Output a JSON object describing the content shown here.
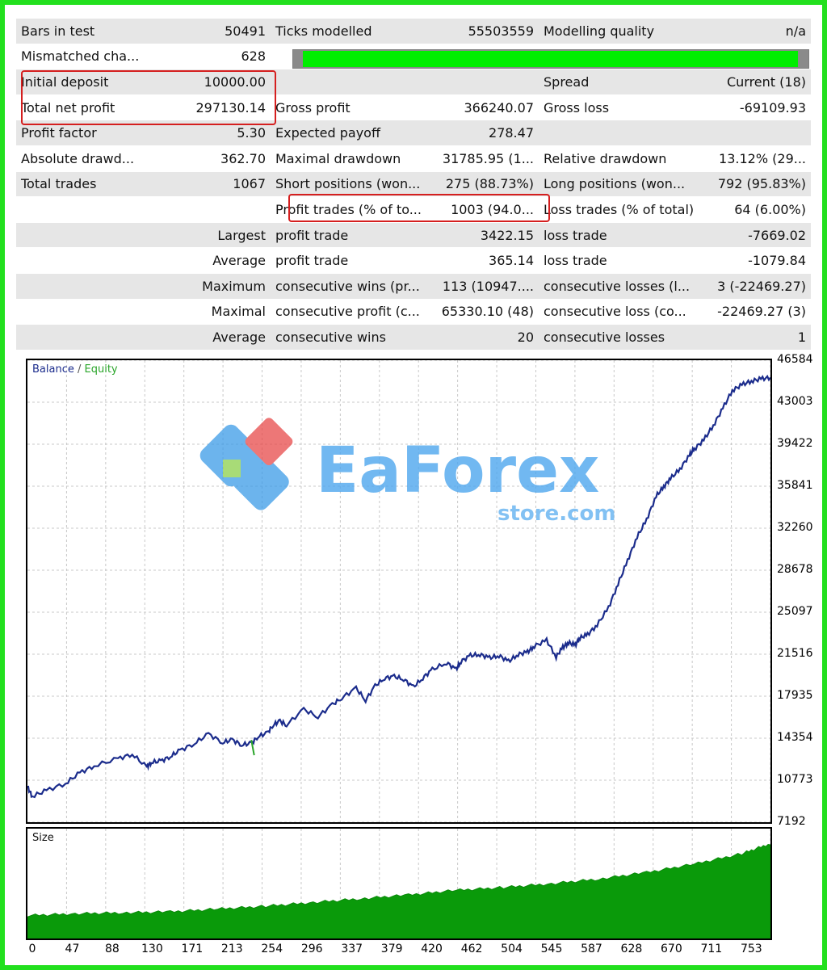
{
  "report": {
    "rows": [
      [
        "Bars in test",
        "50491",
        "Ticks modelled",
        "55503559",
        "Modelling quality",
        "n/a"
      ],
      [
        "Mismatched cha...",
        "628",
        "",
        "",
        "",
        ""
      ],
      [
        "Initial deposit",
        "10000.00",
        "",
        "",
        "Spread",
        "Current (18)"
      ],
      [
        "Total net profit",
        "297130.14",
        "Gross profit",
        "366240.07",
        "Gross loss",
        "-69109.93"
      ],
      [
        "Profit factor",
        "5.30",
        "Expected payoff",
        "278.47",
        "",
        ""
      ],
      [
        "Absolute drawd...",
        "362.70",
        "Maximal drawdown",
        "31785.95 (1...",
        "Relative drawdown",
        "13.12% (29..."
      ],
      [
        "Total trades",
        "1067",
        "Short positions (won...",
        "275 (88.73%)",
        "Long positions (won...",
        "792 (95.83%)"
      ],
      [
        "",
        "",
        "Profit trades (% of to...",
        "1003 (94.0...",
        "Loss trades (% of total)",
        "64 (6.00%)"
      ],
      [
        "",
        "Largest",
        "profit trade",
        "3422.15",
        "loss trade",
        "-7669.02"
      ],
      [
        "",
        "Average",
        "profit trade",
        "365.14",
        "loss trade",
        "-1079.84"
      ],
      [
        "",
        "Maximum",
        "consecutive wins (pr...",
        "113 (10947....",
        "consecutive losses (l...",
        "3 (-22469.27)"
      ],
      [
        "",
        "Maximal",
        "consecutive profit (c...",
        "65330.10 (48)",
        "consecutive loss (co...",
        "-22469.27 (3)"
      ],
      [
        "",
        "Average",
        "consecutive wins",
        "20",
        "consecutive losses",
        "1"
      ]
    ],
    "modelling_quality_fill": 0.98
  },
  "chart_data": [
    {
      "type": "line",
      "legend": [
        "Balance",
        "Equity"
      ],
      "colors": {
        "Balance": "#1b2c8c",
        "Equity": "#2aa52a"
      },
      "y_ticks": [
        "46584",
        "43003",
        "39422",
        "35841",
        "32260",
        "28678",
        "25097",
        "21516",
        "17935",
        "14354",
        "10773",
        "7192"
      ],
      "ylim": [
        7192,
        46584
      ],
      "xlim": [
        0,
        780
      ],
      "grid": true,
      "series": [
        {
          "name": "Balance",
          "x": [
            0,
            5,
            20,
            40,
            55,
            70,
            95,
            110,
            125,
            130,
            140,
            150,
            160,
            175,
            190,
            205,
            215,
            225,
            235,
            242,
            252,
            258,
            265,
            272,
            290,
            305,
            320,
            330,
            345,
            355,
            365,
            375,
            385,
            395,
            405,
            415,
            425,
            440,
            450,
            455,
            465,
            475,
            485,
            495,
            505,
            515,
            525,
            532,
            545,
            555,
            562,
            568,
            575,
            580,
            588,
            598,
            610,
            620,
            630,
            640,
            650,
            660,
            668,
            675,
            685,
            695,
            700,
            710,
            720,
            730,
            740,
            750,
            760,
            770,
            780
          ],
          "y": [
            10200,
            9400,
            9900,
            10500,
            11400,
            12000,
            12600,
            13000,
            11900,
            12300,
            12400,
            12800,
            13300,
            13900,
            14700,
            14000,
            14200,
            13800,
            13900,
            14500,
            14800,
            15500,
            15800,
            15500,
            16800,
            16200,
            17200,
            17800,
            18600,
            17600,
            18800,
            19500,
            19600,
            19400,
            18700,
            19500,
            20200,
            20800,
            20200,
            20900,
            21400,
            21500,
            21200,
            21400,
            20900,
            21500,
            21700,
            22200,
            22700,
            21300,
            22100,
            22500,
            22300,
            22900,
            23200,
            24000,
            25500,
            27500,
            29500,
            31500,
            33000,
            35000,
            35800,
            36500,
            37300,
            38500,
            39000,
            39800,
            41000,
            42500,
            44000,
            44500,
            44800,
            45000,
            45100
          ]
        },
        {
          "name": "Equity",
          "x": [
            0,
            780
          ],
          "y": [
            10200,
            45100
          ]
        }
      ]
    },
    {
      "type": "area",
      "title": "Size",
      "x_ticks": [
        "0",
        "47",
        "88",
        "130",
        "171",
        "213",
        "254",
        "296",
        "337",
        "379",
        "420",
        "462",
        "504",
        "545",
        "587",
        "628",
        "670",
        "711",
        "753"
      ],
      "xlim": [
        0,
        780
      ],
      "x": [
        0,
        50,
        100,
        150,
        200,
        250,
        300,
        350,
        400,
        450,
        500,
        550,
        600,
        650,
        700,
        750,
        780
      ],
      "values": [
        0.23,
        0.25,
        0.26,
        0.27,
        0.3,
        0.33,
        0.37,
        0.41,
        0.45,
        0.5,
        0.53,
        0.57,
        0.62,
        0.69,
        0.78,
        0.89,
        1.0
      ]
    }
  ],
  "watermark": {
    "brand": "EaForex",
    "sub": "store.com"
  }
}
